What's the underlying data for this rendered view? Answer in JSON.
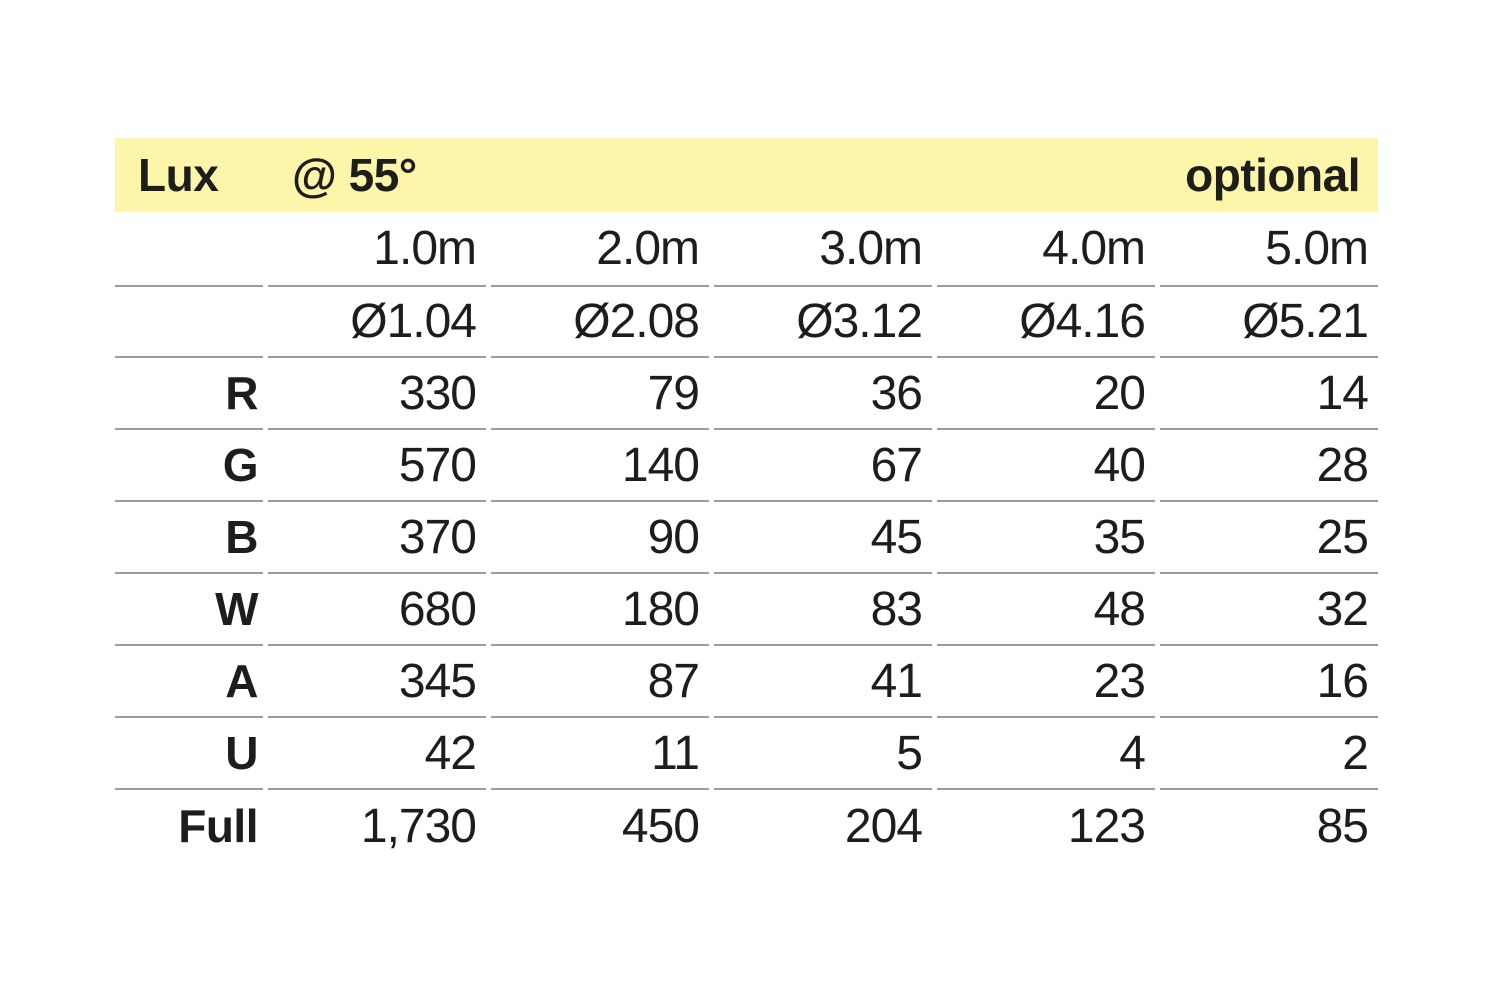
{
  "header": {
    "title": "Lux",
    "angle": "@ 55°",
    "note": "optional"
  },
  "colors": {
    "header_background": "#FDF5A9",
    "rule_gray": "#9B9B9B",
    "text": "#1D1D1B"
  },
  "table": {
    "distance_headers": [
      "1.0m",
      "2.0m",
      "3.0m",
      "4.0m",
      "5.0m"
    ],
    "diameter_headers": [
      "Ø1.04",
      "Ø2.08",
      "Ø3.12",
      "Ø4.16",
      "Ø5.21"
    ],
    "rows": [
      {
        "label": "R",
        "values": [
          "330",
          "79",
          "36",
          "20",
          "14"
        ]
      },
      {
        "label": "G",
        "values": [
          "570",
          "140",
          "67",
          "40",
          "28"
        ]
      },
      {
        "label": "B",
        "values": [
          "370",
          "90",
          "45",
          "35",
          "25"
        ]
      },
      {
        "label": "W",
        "values": [
          "680",
          "180",
          "83",
          "48",
          "32"
        ]
      },
      {
        "label": "A",
        "values": [
          "345",
          "87",
          "41",
          "23",
          "16"
        ]
      },
      {
        "label": "U",
        "values": [
          "42",
          "11",
          "5",
          "4",
          "2"
        ]
      },
      {
        "label": "Full",
        "values": [
          "1,730",
          "450",
          "204",
          "123",
          "85"
        ]
      }
    ]
  }
}
